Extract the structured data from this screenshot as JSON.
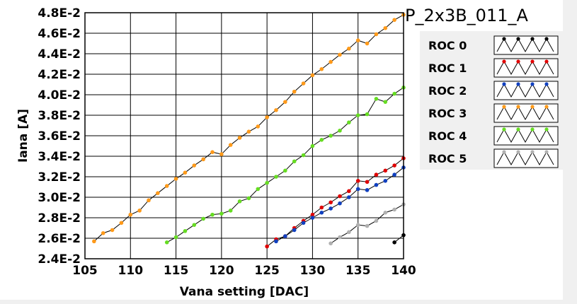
{
  "chart_data": {
    "type": "line",
    "title": "P_2x3B_011_A",
    "xlabel": "Vana setting [DAC]",
    "ylabel": "Iana [A]",
    "xlim": [
      105,
      140
    ],
    "ylim": [
      0.024,
      0.048
    ],
    "x_ticks": [
      105,
      110,
      115,
      120,
      125,
      130,
      135,
      140
    ],
    "x_tick_labels": [
      "105",
      "110",
      "115",
      "120",
      "125",
      "130",
      "135",
      "140"
    ],
    "y_ticks": [
      0.024,
      0.026,
      0.028,
      0.03,
      0.032,
      0.034,
      0.036,
      0.038,
      0.04,
      0.042,
      0.044,
      0.046,
      0.048
    ],
    "y_tick_labels": [
      "2.4E-2",
      "2.6E-2",
      "2.8E-2",
      "3.0E-2",
      "3.2E-2",
      "3.4E-2",
      "3.6E-2",
      "3.8E-2",
      "4.0E-2",
      "4.2E-2",
      "4.4E-2",
      "4.6E-2",
      "4.8E-2"
    ],
    "grid": true,
    "legend_position": "right",
    "series": [
      {
        "name": "ROC 0",
        "color": "#000000",
        "x": [
          139,
          140
        ],
        "y": [
          0.0256,
          0.0263
        ]
      },
      {
        "name": "ROC 1",
        "color": "#e00000",
        "x": [
          125,
          126,
          127,
          128,
          129,
          130,
          131,
          132,
          133,
          134,
          135,
          136,
          137,
          138,
          139,
          140
        ],
        "y": [
          0.0252,
          0.0259,
          0.0262,
          0.027,
          0.0277,
          0.0283,
          0.029,
          0.0295,
          0.0301,
          0.0306,
          0.0316,
          0.0315,
          0.0322,
          0.0326,
          0.0331,
          0.0338
        ]
      },
      {
        "name": "ROC 2",
        "color": "#1040c0",
        "x": [
          126,
          127,
          128,
          129,
          130,
          131,
          132,
          133,
          134,
          135,
          136,
          137,
          138,
          139,
          140
        ],
        "y": [
          0.0257,
          0.0262,
          0.0268,
          0.0275,
          0.028,
          0.0285,
          0.0289,
          0.0294,
          0.03,
          0.0308,
          0.0307,
          0.0312,
          0.0316,
          0.0322,
          0.0329
        ]
      },
      {
        "name": "ROC 3",
        "color": "#ff9a1a",
        "x": [
          106,
          107,
          108,
          109,
          110,
          111,
          112,
          113,
          114,
          115,
          116,
          117,
          118,
          119,
          120,
          121,
          122,
          123,
          124,
          125,
          126,
          127,
          128,
          129,
          130,
          131,
          132,
          133,
          134,
          135,
          136,
          137,
          138,
          139,
          140
        ],
        "y": [
          0.0257,
          0.0265,
          0.0268,
          0.0275,
          0.0283,
          0.0287,
          0.0297,
          0.0304,
          0.0311,
          0.0318,
          0.0324,
          0.0331,
          0.0337,
          0.0344,
          0.0342,
          0.0351,
          0.0358,
          0.0364,
          0.0369,
          0.0378,
          0.0385,
          0.0393,
          0.0403,
          0.0411,
          0.0419,
          0.0425,
          0.0432,
          0.0439,
          0.0445,
          0.0453,
          0.045,
          0.0459,
          0.0465,
          0.0473,
          0.0478
        ]
      },
      {
        "name": "ROC 4",
        "color": "#66dd22",
        "x": [
          114,
          115,
          116,
          117,
          118,
          119,
          120,
          121,
          122,
          123,
          124,
          125,
          126,
          127,
          128,
          129,
          130,
          131,
          132,
          133,
          134,
          135,
          136,
          137,
          138,
          139,
          140
        ],
        "y": [
          0.0256,
          0.0261,
          0.0267,
          0.0273,
          0.0279,
          0.0283,
          0.0284,
          0.0287,
          0.0296,
          0.0299,
          0.0308,
          0.0314,
          0.032,
          0.0326,
          0.0335,
          0.0341,
          0.035,
          0.0356,
          0.036,
          0.0365,
          0.0373,
          0.038,
          0.0381,
          0.0396,
          0.0393,
          0.0401,
          0.0407
        ]
      },
      {
        "name": "ROC 5",
        "color": "#b0b0b0",
        "x": [
          132,
          133,
          134,
          135,
          136,
          137,
          138,
          139,
          140
        ],
        "y": [
          0.0255,
          0.0261,
          0.0266,
          0.0273,
          0.0272,
          0.0277,
          0.0285,
          0.0288,
          0.0293
        ]
      }
    ]
  }
}
